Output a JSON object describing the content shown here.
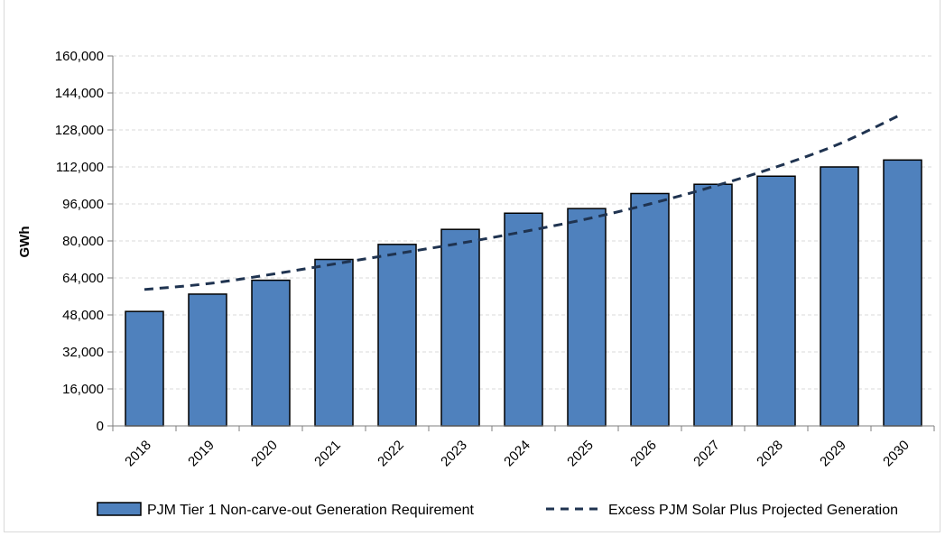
{
  "chart_data": {
    "type": "bar",
    "title": "",
    "xlabel": "",
    "ylabel": "GWh",
    "ylim": [
      0,
      160000
    ],
    "yticks": [
      "0",
      "16,000",
      "32,000",
      "48,000",
      "64,000",
      "80,000",
      "96,000",
      "112,000",
      "128,000",
      "144,000",
      "160,000"
    ],
    "categories": [
      "2018",
      "2019",
      "2020",
      "2021",
      "2022",
      "2023",
      "2024",
      "2025",
      "2026",
      "2027",
      "2028",
      "2029",
      "2030"
    ],
    "grid": true,
    "legend_position": "bottom",
    "series": [
      {
        "name": "PJM Tier 1 Non-carve-out Generation Requirement",
        "type": "bar",
        "color": "#4f81bd",
        "values": [
          49500,
          57000,
          63000,
          72000,
          78500,
          85000,
          92000,
          94000,
          100500,
          104500,
          108000,
          112000,
          115000
        ]
      },
      {
        "name": "Excess PJM Solar Plus Projected Generation",
        "type": "line",
        "style": "dashed",
        "color": "#1f3350",
        "values": [
          59000,
          61500,
          65500,
          70000,
          74500,
          79000,
          84000,
          89500,
          96000,
          103500,
          112000,
          122000,
          135000
        ]
      }
    ]
  }
}
